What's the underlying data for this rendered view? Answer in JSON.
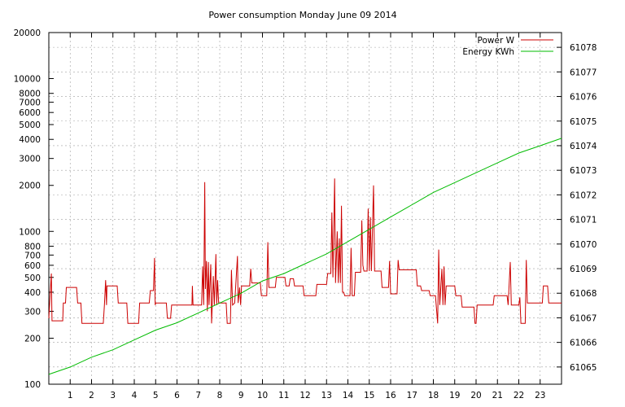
{
  "chart_data": {
    "type": "line",
    "title": "Power consumption Monday June 09 2014",
    "x_ticks": [
      "1",
      "2",
      "3",
      "4",
      "5",
      "6",
      "7",
      "8",
      "9",
      "10",
      "11",
      "12",
      "13",
      "14",
      "15",
      "16",
      "17",
      "18",
      "19",
      "20",
      "21",
      "22",
      "23"
    ],
    "xlim": [
      0,
      24
    ],
    "y_left": {
      "scale": "log",
      "ylim": [
        100,
        20000
      ],
      "tick_values": [
        100,
        200,
        300,
        400,
        500,
        600,
        700,
        800,
        1000,
        2000,
        3000,
        4000,
        5000,
        6000,
        7000,
        8000,
        10000,
        20000
      ],
      "tick_labels": [
        "100",
        "200",
        "300",
        "400",
        "500",
        "600",
        "700",
        "800",
        "1000",
        "2000",
        "3000",
        "4000",
        "5000",
        "6000",
        "7000",
        "8000",
        "10000",
        "20000"
      ]
    },
    "y_right": {
      "scale": "linear",
      "ylim": [
        61064.3,
        61078.6
      ],
      "tick_values": [
        61065,
        61066,
        61067,
        61068,
        61069,
        61070,
        61071,
        61072,
        61073,
        61074,
        61075,
        61076,
        61077,
        61078
      ],
      "tick_labels": [
        "61065",
        "61066",
        "61067",
        "61068",
        "61069",
        "61070",
        "61071",
        "61072",
        "61073",
        "61074",
        "61075",
        "61076",
        "61077",
        "61078"
      ]
    },
    "grid": true,
    "legend_position": "top-right",
    "series": [
      {
        "name": "Power W",
        "axis": "left",
        "color": "#cc0000",
        "points": [
          [
            0,
            270
          ],
          [
            0.12,
            530
          ],
          [
            0.15,
            260
          ],
          [
            0.65,
            260
          ],
          [
            0.68,
            340
          ],
          [
            0.78,
            340
          ],
          [
            0.82,
            430
          ],
          [
            1.3,
            430
          ],
          [
            1.35,
            340
          ],
          [
            1.5,
            340
          ],
          [
            1.55,
            250
          ],
          [
            2.55,
            250
          ],
          [
            2.6,
            330
          ],
          [
            2.66,
            480
          ],
          [
            2.7,
            330
          ],
          [
            2.72,
            440
          ],
          [
            3.2,
            440
          ],
          [
            3.25,
            340
          ],
          [
            3.65,
            340
          ],
          [
            3.7,
            250
          ],
          [
            4.2,
            250
          ],
          [
            4.25,
            340
          ],
          [
            4.7,
            340
          ],
          [
            4.75,
            410
          ],
          [
            4.9,
            410
          ],
          [
            4.95,
            670
          ],
          [
            4.98,
            330
          ],
          [
            5.0,
            340
          ],
          [
            5.5,
            340
          ],
          [
            5.55,
            270
          ],
          [
            5.7,
            270
          ],
          [
            5.75,
            330
          ],
          [
            6.7,
            330
          ],
          [
            6.72,
            440
          ],
          [
            6.75,
            330
          ],
          [
            7.15,
            330
          ],
          [
            7.2,
            590
          ],
          [
            7.25,
            330
          ],
          [
            7.3,
            2100
          ],
          [
            7.33,
            420
          ],
          [
            7.38,
            640
          ],
          [
            7.42,
            300
          ],
          [
            7.47,
            630
          ],
          [
            7.5,
            330
          ],
          [
            7.58,
            610
          ],
          [
            7.62,
            250
          ],
          [
            7.7,
            510
          ],
          [
            7.75,
            330
          ],
          [
            7.82,
            710
          ],
          [
            7.86,
            330
          ],
          [
            7.9,
            480
          ],
          [
            7.95,
            340
          ],
          [
            8.05,
            340
          ],
          [
            8.3,
            340
          ],
          [
            8.35,
            250
          ],
          [
            8.5,
            250
          ],
          [
            8.55,
            560
          ],
          [
            8.6,
            330
          ],
          [
            8.7,
            340
          ],
          [
            8.83,
            690
          ],
          [
            8.86,
            340
          ],
          [
            8.93,
            430
          ],
          [
            8.98,
            330
          ],
          [
            9.02,
            440
          ],
          [
            9.4,
            440
          ],
          [
            9.45,
            570
          ],
          [
            9.5,
            460
          ],
          [
            9.9,
            460
          ],
          [
            9.95,
            380
          ],
          [
            10.2,
            380
          ],
          [
            10.25,
            850
          ],
          [
            10.3,
            430
          ],
          [
            10.6,
            430
          ],
          [
            10.65,
            500
          ],
          [
            11.05,
            500
          ],
          [
            11.1,
            440
          ],
          [
            11.25,
            440
          ],
          [
            11.3,
            490
          ],
          [
            11.45,
            490
          ],
          [
            11.5,
            440
          ],
          [
            11.9,
            440
          ],
          [
            11.95,
            380
          ],
          [
            12.5,
            380
          ],
          [
            12.55,
            450
          ],
          [
            13.0,
            450
          ],
          [
            13.05,
            530
          ],
          [
            13.2,
            530
          ],
          [
            13.25,
            1330
          ],
          [
            13.3,
            500
          ],
          [
            13.38,
            2220
          ],
          [
            13.42,
            460
          ],
          [
            13.5,
            1000
          ],
          [
            13.55,
            460
          ],
          [
            13.6,
            900
          ],
          [
            13.65,
            460
          ],
          [
            13.7,
            1470
          ],
          [
            13.75,
            400
          ],
          [
            13.8,
            400
          ],
          [
            13.85,
            380
          ],
          [
            14.1,
            380
          ],
          [
            14.15,
            780
          ],
          [
            14.2,
            380
          ],
          [
            14.3,
            380
          ],
          [
            14.35,
            540
          ],
          [
            14.6,
            540
          ],
          [
            14.65,
            1180
          ],
          [
            14.7,
            600
          ],
          [
            14.75,
            550
          ],
          [
            14.9,
            550
          ],
          [
            14.95,
            1410
          ],
          [
            15.0,
            550
          ],
          [
            15.05,
            1240
          ],
          [
            15.1,
            550
          ],
          [
            15.2,
            2000
          ],
          [
            15.25,
            550
          ],
          [
            15.55,
            550
          ],
          [
            15.6,
            430
          ],
          [
            15.9,
            430
          ],
          [
            15.95,
            640
          ],
          [
            16.0,
            390
          ],
          [
            16.3,
            390
          ],
          [
            16.35,
            650
          ],
          [
            16.4,
            560
          ],
          [
            17.2,
            560
          ],
          [
            17.25,
            440
          ],
          [
            17.4,
            440
          ],
          [
            17.45,
            410
          ],
          [
            17.8,
            410
          ],
          [
            17.85,
            380
          ],
          [
            18.1,
            380
          ],
          [
            18.15,
            310
          ],
          [
            18.2,
            250
          ],
          [
            18.25,
            760
          ],
          [
            18.3,
            330
          ],
          [
            18.4,
            570
          ],
          [
            18.45,
            330
          ],
          [
            18.5,
            590
          ],
          [
            18.55,
            330
          ],
          [
            18.6,
            440
          ],
          [
            19.0,
            440
          ],
          [
            19.05,
            380
          ],
          [
            19.3,
            380
          ],
          [
            19.35,
            320
          ],
          [
            19.9,
            320
          ],
          [
            19.95,
            250
          ],
          [
            20.0,
            250
          ],
          [
            20.05,
            330
          ],
          [
            20.8,
            330
          ],
          [
            20.85,
            380
          ],
          [
            21.45,
            380
          ],
          [
            21.5,
            330
          ],
          [
            21.6,
            630
          ],
          [
            21.65,
            330
          ],
          [
            22.0,
            330
          ],
          [
            22.05,
            370
          ],
          [
            22.1,
            250
          ],
          [
            22.3,
            250
          ],
          [
            22.35,
            650
          ],
          [
            22.4,
            340
          ],
          [
            23.1,
            340
          ],
          [
            23.15,
            440
          ],
          [
            23.35,
            440
          ],
          [
            23.4,
            340
          ],
          [
            24,
            340
          ]
        ]
      },
      {
        "name": "Energy KWh",
        "axis": "right",
        "color": "#00bb00",
        "points": [
          [
            0,
            61064.7
          ],
          [
            1,
            61065.0
          ],
          [
            2,
            61065.4
          ],
          [
            3,
            61065.7
          ],
          [
            4,
            61066.1
          ],
          [
            5,
            61066.5
          ],
          [
            6,
            61066.8
          ],
          [
            7,
            61067.2
          ],
          [
            8,
            61067.6
          ],
          [
            9,
            61068.0
          ],
          [
            10,
            61068.5
          ],
          [
            11,
            61068.8
          ],
          [
            12,
            61069.2
          ],
          [
            13,
            61069.6
          ],
          [
            14,
            61070.1
          ],
          [
            15,
            61070.6
          ],
          [
            16,
            61071.1
          ],
          [
            17,
            61071.6
          ],
          [
            18,
            61072.1
          ],
          [
            19,
            61072.5
          ],
          [
            20,
            61072.9
          ],
          [
            21,
            61073.3
          ],
          [
            22,
            61073.7
          ],
          [
            23,
            61074.0
          ],
          [
            24,
            61074.3
          ]
        ]
      }
    ]
  }
}
